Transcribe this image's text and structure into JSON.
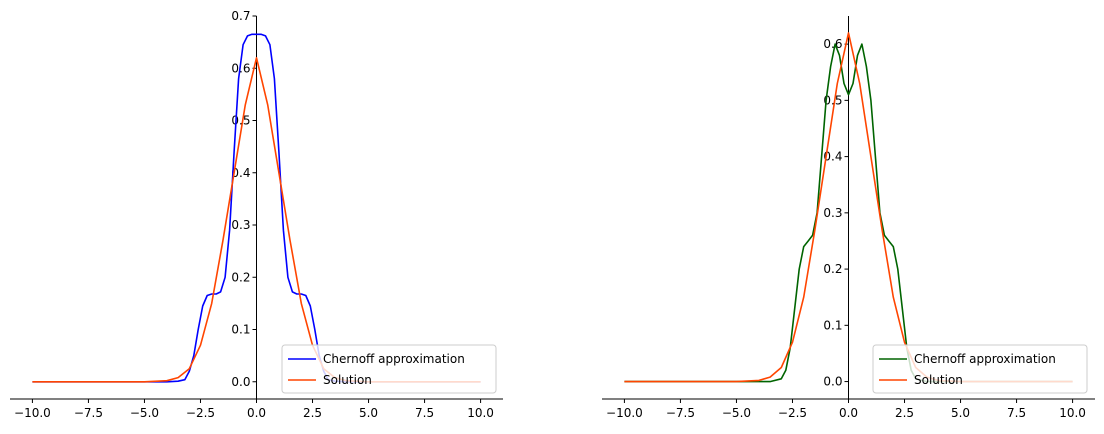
{
  "chart_data": [
    {
      "type": "line",
      "xlim": [
        -11.0,
        11.0
      ],
      "ylim": [
        -0.033,
        0.7
      ],
      "x_ticks": [
        -10.0,
        -7.5,
        -5.0,
        -2.5,
        0.0,
        2.5,
        5.0,
        7.5,
        10.0
      ],
      "x_tick_labels": [
        "−10.0",
        "−7.5",
        "−5.0",
        "−2.5",
        "0.0",
        "2.5",
        "5.0",
        "7.5",
        "10.0"
      ],
      "y_ticks": [
        0.0,
        0.1,
        0.2,
        0.3,
        0.4,
        0.5,
        0.6,
        0.7
      ],
      "y_tick_labels": [
        "0.0",
        "0.1",
        "0.2",
        "0.3",
        "0.4",
        "0.5",
        "0.6",
        "0.7"
      ],
      "spines": "centered",
      "grid": false,
      "legend_position": "lower-right",
      "series": [
        {
          "name": "Chernoff approximation",
          "color": "#0000ff",
          "x": [
            -10,
            -4,
            -3.5,
            -3.2,
            -3.0,
            -2.8,
            -2.6,
            -2.4,
            -2.2,
            -2.0,
            -1.8,
            -1.6,
            -1.4,
            -1.2,
            -1.0,
            -0.8,
            -0.6,
            -0.4,
            -0.2,
            0,
            0.2,
            0.4,
            0.6,
            0.8,
            1.0,
            1.2,
            1.4,
            1.6,
            1.8,
            2.0,
            2.2,
            2.4,
            2.6,
            2.8,
            3.0,
            3.2,
            3.5,
            4,
            10
          ],
          "y": [
            0,
            0,
            0.001,
            0.004,
            0.02,
            0.05,
            0.1,
            0.145,
            0.165,
            0.168,
            0.168,
            0.172,
            0.2,
            0.29,
            0.44,
            0.58,
            0.645,
            0.662,
            0.665,
            0.665,
            0.665,
            0.662,
            0.645,
            0.58,
            0.44,
            0.29,
            0.2,
            0.172,
            0.168,
            0.168,
            0.165,
            0.145,
            0.1,
            0.05,
            0.02,
            0.004,
            0.001,
            0,
            0
          ]
        },
        {
          "name": "Solution",
          "color": "#ff4500",
          "x": [
            -10,
            -5,
            -4,
            -3.5,
            -3.0,
            -2.5,
            -2.0,
            -1.5,
            -1.0,
            -0.5,
            0,
            0.5,
            1.0,
            1.5,
            2.0,
            2.5,
            3.0,
            3.5,
            4,
            5,
            10
          ],
          "y": [
            0,
            0,
            0.002,
            0.008,
            0.025,
            0.07,
            0.15,
            0.27,
            0.4,
            0.53,
            0.62,
            0.53,
            0.4,
            0.27,
            0.15,
            0.07,
            0.025,
            0.008,
            0.002,
            0,
            0
          ]
        }
      ]
    },
    {
      "type": "line",
      "xlim": [
        -11.0,
        11.0
      ],
      "ylim": [
        -0.031,
        0.65
      ],
      "x_ticks": [
        -10.0,
        -7.5,
        -5.0,
        -2.5,
        0.0,
        2.5,
        5.0,
        7.5,
        10.0
      ],
      "x_tick_labels": [
        "−10.0",
        "−7.5",
        "−5.0",
        "−2.5",
        "0.0",
        "2.5",
        "5.0",
        "7.5",
        "10.0"
      ],
      "y_ticks": [
        0.0,
        0.1,
        0.2,
        0.3,
        0.4,
        0.5,
        0.6
      ],
      "y_tick_labels": [
        "0.0",
        "0.1",
        "0.2",
        "0.3",
        "0.4",
        "0.5",
        "0.6"
      ],
      "spines": "centered",
      "grid": false,
      "legend_position": "lower-right",
      "series": [
        {
          "name": "Chernoff approximation",
          "color": "#006400",
          "x": [
            -10,
            -3.5,
            -3.0,
            -2.8,
            -2.6,
            -2.4,
            -2.2,
            -2.0,
            -1.8,
            -1.6,
            -1.4,
            -1.2,
            -1.0,
            -0.8,
            -0.6,
            -0.4,
            -0.2,
            0,
            0.2,
            0.4,
            0.6,
            0.8,
            1.0,
            1.2,
            1.4,
            1.6,
            1.8,
            2.0,
            2.2,
            2.4,
            2.6,
            2.8,
            3.0,
            3.5,
            10
          ],
          "y": [
            0,
            0,
            0.005,
            0.02,
            0.06,
            0.13,
            0.2,
            0.24,
            0.25,
            0.26,
            0.3,
            0.4,
            0.5,
            0.56,
            0.6,
            0.58,
            0.53,
            0.51,
            0.53,
            0.58,
            0.6,
            0.56,
            0.5,
            0.4,
            0.3,
            0.26,
            0.25,
            0.24,
            0.2,
            0.13,
            0.06,
            0.02,
            0.005,
            0,
            0
          ]
        },
        {
          "name": "Solution",
          "color": "#ff4500",
          "x": [
            -10,
            -5,
            -4,
            -3.5,
            -3.0,
            -2.5,
            -2.0,
            -1.5,
            -1.0,
            -0.5,
            0,
            0.5,
            1.0,
            1.5,
            2.0,
            2.5,
            3.0,
            3.5,
            4,
            5,
            10
          ],
          "y": [
            0,
            0,
            0.002,
            0.008,
            0.025,
            0.07,
            0.15,
            0.27,
            0.4,
            0.53,
            0.62,
            0.53,
            0.4,
            0.27,
            0.15,
            0.07,
            0.025,
            0.008,
            0.002,
            0,
            0
          ]
        }
      ]
    }
  ]
}
